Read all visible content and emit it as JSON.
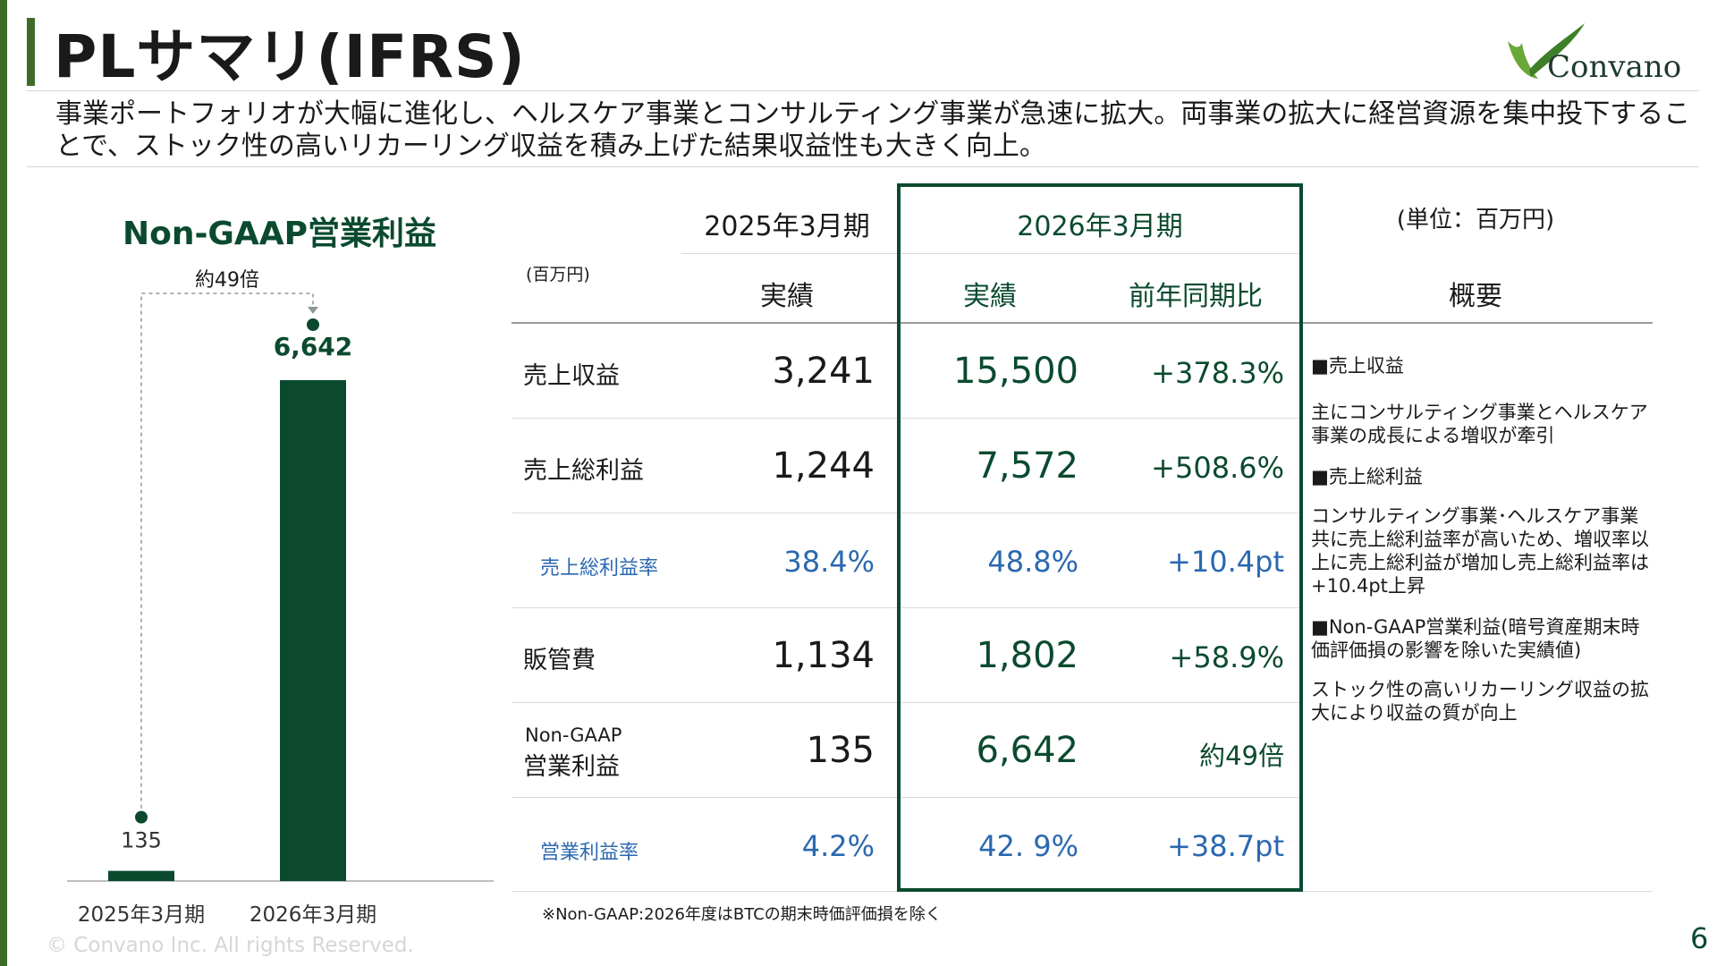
{
  "title": "PLサマリ(IFRS)",
  "logo": {
    "text": "Convano"
  },
  "summary": "事業ポートフォリオが大幅に進化し、ヘルスケア事業とコンサルティング事業が急速に拡大。両事業の拡大に経営資源を集中投下することで、ストック性の高いリカーリング収益を積み上げた結果収益性も大きく向上。",
  "chart_data": {
    "type": "bar",
    "title": "Non-GAAP営業利益",
    "categories": [
      "2025年3月期",
      "2026年3月期"
    ],
    "values": [
      135,
      6642
    ],
    "value_labels": [
      "135",
      "6,642"
    ],
    "annotation": "約49倍",
    "colors": {
      "bar": "#0b4a2f",
      "axis": "#bfbfbf",
      "annotation": "#8a9a8e"
    },
    "xlabel": "",
    "ylabel": ""
  },
  "table": {
    "unit_label": "(百万円)",
    "unit_note": "(単位：百万円)",
    "period_prev": "2025年3月期",
    "period_curr": "2026年3月期",
    "col_actual_prev": "実績",
    "col_actual_curr": "実績",
    "col_yoy": "前年同期比",
    "col_overview": "概要",
    "rows": [
      {
        "label": "売上収益",
        "prev": "3,241",
        "curr": "15,500",
        "yoy": "+378.3%"
      },
      {
        "label": "売上総利益",
        "prev": "1,244",
        "curr": "7,572",
        "yoy": "+508.6%"
      },
      {
        "label": "売上総利益率",
        "prev": "38.4%",
        "curr": "48.8%",
        "yoy": "+10.4pt"
      },
      {
        "label": "販管費",
        "prev": "1,134",
        "curr": "1,802",
        "yoy": "+58.9%"
      },
      {
        "label_top": "Non-GAAP",
        "label": "営業利益",
        "prev": "135",
        "curr": "6,642",
        "yoy": "約49倍"
      },
      {
        "label": "営業利益率",
        "prev": "4.2%",
        "curr": "42. 9%",
        "yoy": "+38.7pt"
      }
    ],
    "notes": [
      {
        "head": "■売上収益",
        "body": "主にコンサルティング事業とヘルスケア事業の成長による増収が牽引"
      },
      {
        "head": "■売上総利益",
        "body": "コンサルティング事業･ヘルスケア事業共に売上総利益率が高いため、増収率以上に売上総利益が増加し売上総利益率は+10.4pt上昇"
      },
      {
        "head": "■Non-GAAP営業利益(暗号資産期末時価評価損の影響を除いた実績値)",
        "body": "ストック性の高いリカーリング収益の拡大により収益の質が向上"
      }
    ]
  },
  "footnote": "※Non-GAAP:2026年度はBTCの期末時価評価損を除く",
  "copyright": "© Convano Inc. All rights Reserved.",
  "page_number": "6"
}
